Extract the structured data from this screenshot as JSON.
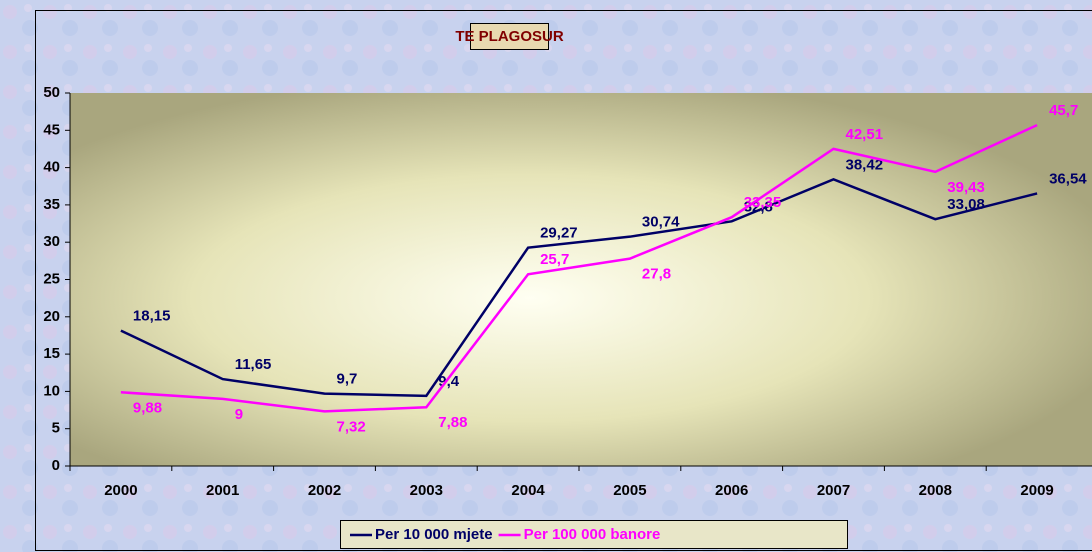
{
  "chart_data": {
    "type": "line",
    "title": "TE PLAGOSUR",
    "categories": [
      "2000",
      "2001",
      "2002",
      "2003",
      "2004",
      "2005",
      "2006",
      "2007",
      "2008",
      "2009"
    ],
    "series": [
      {
        "name": "Per 10 000 mjete",
        "color": "#000066",
        "values": [
          18.15,
          11.65,
          9.7,
          9.4,
          29.27,
          30.74,
          32.8,
          38.42,
          33.08,
          36.54
        ],
        "value_labels": [
          "18,15",
          "11,65",
          "9,7",
          "9,4",
          "29,27",
          "30,74",
          "32,8",
          "38,42",
          "33,08",
          "36,54"
        ]
      },
      {
        "name": "Per 100 000 banore",
        "color": "#ff00ff",
        "values": [
          9.88,
          9,
          7.32,
          7.88,
          25.7,
          27.8,
          33.35,
          42.51,
          39.43,
          45.7
        ],
        "value_labels": [
          "9,88",
          "9",
          "7,32",
          "7,88",
          "25,7",
          "27,8",
          "33,35",
          "42,51",
          "39,43",
          "45,7"
        ]
      }
    ],
    "ylim": [
      0,
      50
    ],
    "yticks": [
      0,
      5,
      10,
      15,
      20,
      25,
      30,
      35,
      40,
      45,
      50
    ]
  }
}
